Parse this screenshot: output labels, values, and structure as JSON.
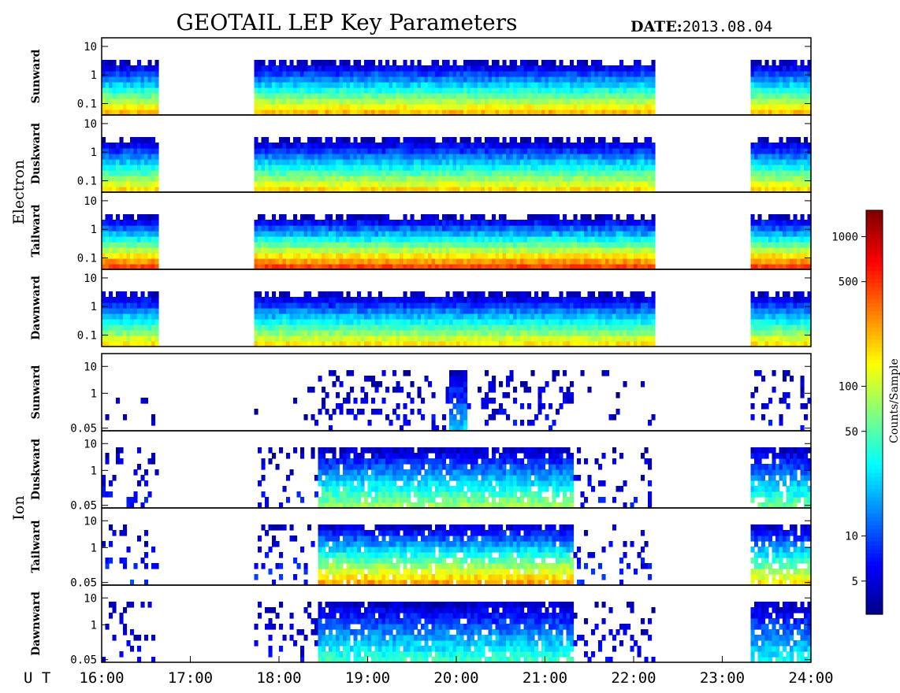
{
  "chart_data": {
    "type": "heatmap",
    "title": "GEOTAIL LEP Key Parameters",
    "date_label": "DATE:",
    "date_value": "2013.08.04",
    "time_axis": {
      "label": "U T",
      "range": [
        16,
        24
      ],
      "ticks": [
        "16:00",
        "17:00",
        "18:00",
        "19:00",
        "20:00",
        "21:00",
        "22:00",
        "23:00",
        "24:00"
      ]
    },
    "colorbar": {
      "label": "Counts/Sample",
      "scale": "log",
      "range": [
        3,
        1500
      ],
      "ticks": [
        "1000",
        "500",
        "100",
        "50",
        "10",
        "5"
      ],
      "tick_values": [
        1000,
        500,
        100,
        50,
        10,
        5
      ]
    },
    "groups": [
      {
        "name": "Electron",
        "yscale": "log",
        "ylim": [
          0.04,
          20
        ],
        "y_ticks": [
          "10",
          "1",
          "0.1"
        ],
        "y_tick_values": [
          10,
          1,
          0.1
        ],
        "panels": [
          {
            "name": "Sunward",
            "peak": 1.0
          },
          {
            "name": "Duskward",
            "peak": 0.9
          },
          {
            "name": "Tailward",
            "peak": 1.4
          },
          {
            "name": "Dawnward",
            "peak": 0.85
          }
        ]
      },
      {
        "name": "Ion",
        "yscale": "log",
        "ylim": [
          0.04,
          30
        ],
        "y_ticks": [
          "10",
          "1",
          "0.05"
        ],
        "y_tick_values": [
          10,
          1,
          0.05
        ],
        "panels": [
          {
            "name": "Sunward",
            "peak": 0.15
          },
          {
            "name": "Duskward",
            "peak": 0.8
          },
          {
            "name": "Tailward",
            "peak": 1.4
          },
          {
            "name": "Dawnward",
            "peak": 0.5
          }
        ]
      }
    ],
    "data_intervals": [
      {
        "start": 16.0,
        "end": 16.62
      },
      {
        "start": 17.73,
        "end": 22.25
      },
      {
        "start": 23.3,
        "end": 24.0
      }
    ]
  }
}
